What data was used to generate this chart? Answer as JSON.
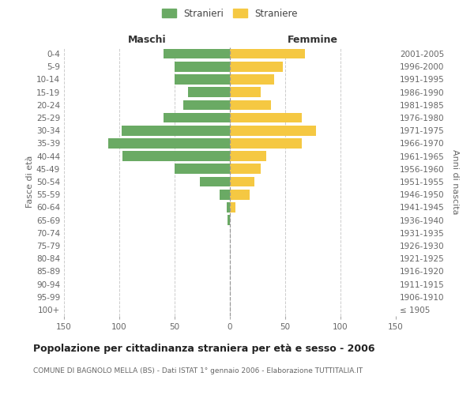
{
  "age_groups": [
    "100+",
    "95-99",
    "90-94",
    "85-89",
    "80-84",
    "75-79",
    "70-74",
    "65-69",
    "60-64",
    "55-59",
    "50-54",
    "45-49",
    "40-44",
    "35-39",
    "30-34",
    "25-29",
    "20-24",
    "15-19",
    "10-14",
    "5-9",
    "0-4"
  ],
  "birth_years": [
    "≤ 1905",
    "1906-1910",
    "1911-1915",
    "1916-1920",
    "1921-1925",
    "1926-1930",
    "1931-1935",
    "1936-1940",
    "1941-1945",
    "1946-1950",
    "1951-1955",
    "1956-1960",
    "1961-1965",
    "1966-1970",
    "1971-1975",
    "1976-1980",
    "1981-1985",
    "1986-1990",
    "1991-1995",
    "1996-2000",
    "2001-2005"
  ],
  "maschi": [
    0,
    0,
    0,
    0,
    0,
    0,
    0,
    2,
    3,
    9,
    27,
    50,
    97,
    110,
    98,
    60,
    42,
    38,
    50,
    50,
    60
  ],
  "femmine": [
    0,
    0,
    0,
    0,
    0,
    0,
    0,
    0,
    5,
    18,
    22,
    28,
    33,
    65,
    78,
    65,
    37,
    28,
    40,
    48,
    68
  ],
  "maschi_color": "#6aaa64",
  "femmine_color": "#f5c842",
  "background_color": "#ffffff",
  "grid_color": "#cccccc",
  "title": "Popolazione per cittadinanza straniera per età e sesso - 2006",
  "subtitle": "COMUNE DI BAGNOLO MELLA (BS) - Dati ISTAT 1° gennaio 2006 - Elaborazione TUTTITALIA.IT",
  "xlabel_left": "Maschi",
  "xlabel_right": "Femmine",
  "ylabel_left": "Fasce di età",
  "ylabel_right": "Anni di nascita",
  "legend_maschi": "Stranieri",
  "legend_femmine": "Straniere",
  "xlim": 150
}
